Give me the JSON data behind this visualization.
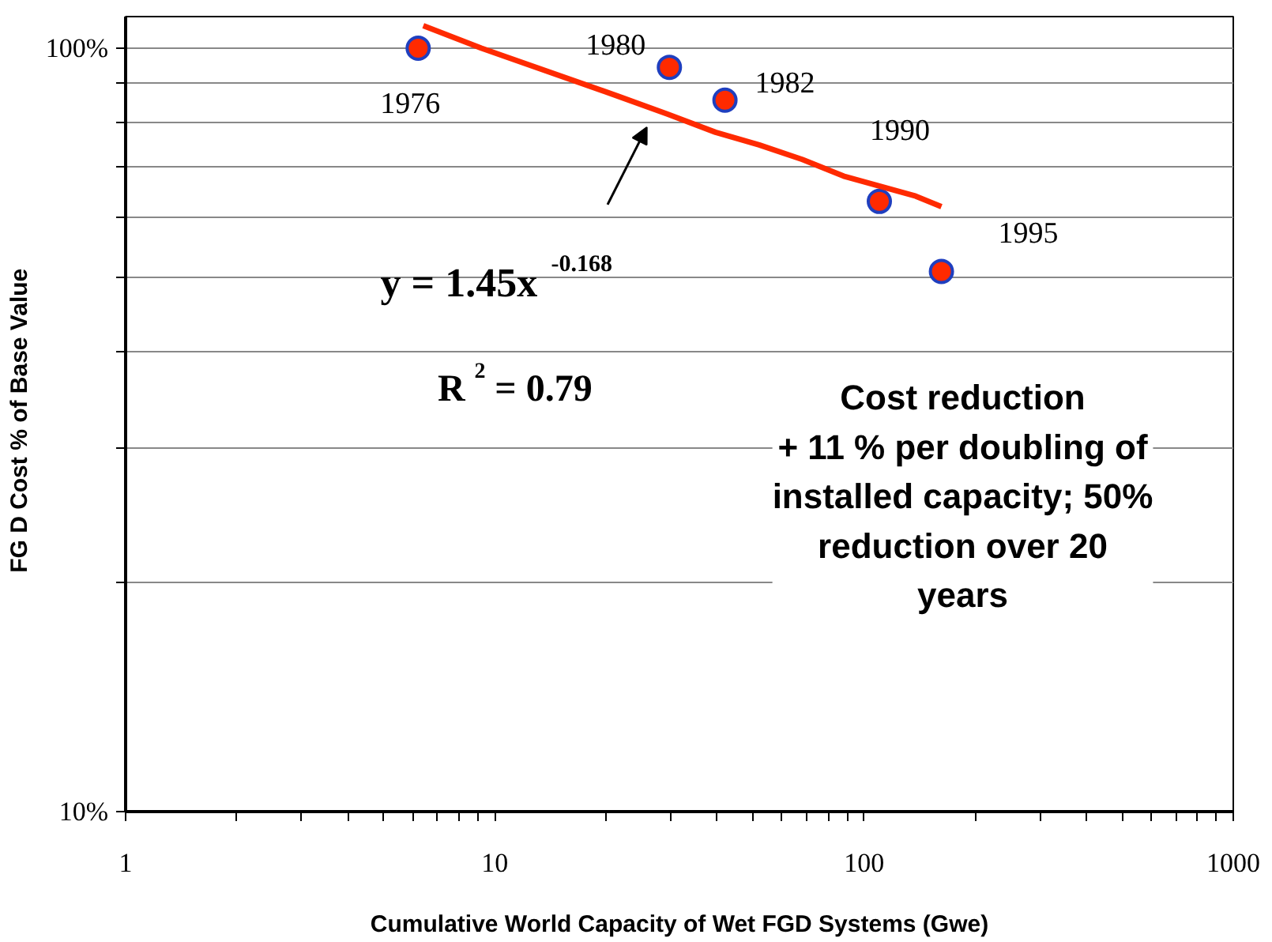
{
  "chart_data": {
    "type": "scatter",
    "xlabel": "Cumulative World Capacity of Wet FGD Systems (Gwe)",
    "ylabel": "FG D Cost   % of Base Value",
    "log": "xy",
    "grid": "y",
    "marker": "circle",
    "xlim": [
      1,
      1000
    ],
    "ylim": [
      10,
      110
    ],
    "xticks": [
      1,
      {
        "value": 2,
        "label": null
      },
      {
        "value": 3,
        "label": null
      },
      {
        "value": 4,
        "label": null
      },
      {
        "value": 5,
        "label": null
      },
      {
        "value": 6,
        "label": null
      },
      {
        "value": 7,
        "label": null
      },
      {
        "value": 8,
        "label": null
      },
      {
        "value": 9,
        "label": null
      },
      10,
      {
        "value": 20,
        "label": null
      },
      {
        "value": 30,
        "label": null
      },
      {
        "value": 40,
        "label": null
      },
      {
        "value": 50,
        "label": null
      },
      {
        "value": 60,
        "label": null
      },
      {
        "value": 70,
        "label": null
      },
      {
        "value": 80,
        "label": null
      },
      {
        "value": 90,
        "label": null
      },
      100,
      {
        "value": 200,
        "label": null
      },
      {
        "value": 300,
        "label": null
      },
      {
        "value": 400,
        "label": null
      },
      {
        "value": 500,
        "label": null
      },
      {
        "value": 600,
        "label": null
      },
      {
        "value": 700,
        "label": null
      },
      {
        "value": 800,
        "label": null
      },
      {
        "value": 900,
        "label": null
      },
      1000
    ],
    "yticks": [
      {
        "value": 10,
        "label": "10%"
      },
      {
        "value": 20,
        "label": null
      },
      {
        "value": 30,
        "label": null
      },
      {
        "value": 40,
        "label": null
      },
      {
        "value": 50,
        "label": null
      },
      {
        "value": 60,
        "label": null
      },
      {
        "value": 70,
        "label": null
      },
      {
        "value": 80,
        "label": null
      },
      {
        "value": 90,
        "label": null
      },
      {
        "value": 100,
        "label": "100%"
      }
    ],
    "series": [
      {
        "color": "#ff2a00",
        "x": [
          6.2,
          29.7,
          42,
          110,
          162
        ],
        "values": [
          100,
          94.4,
          85.5,
          63,
          51
        ]
      },
      {
        "type": "line",
        "color": "#ff2a00",
        "marker": "none",
        "x": [
          6.4,
          9.2,
          21.6,
          29.3,
          39.6,
          52,
          68,
          88,
          138,
          162
        ],
        "values": [
          107,
          100,
          86.5,
          82,
          77.6,
          74.7,
          71.5,
          68,
          64,
          62
        ]
      }
    ],
    "annotations": [
      {
        "text": "1976",
        "x": 6.2,
        "y": 100
      },
      {
        "text": "1980",
        "x": 29.7,
        "y": 94.4
      },
      {
        "text": "1982",
        "x": 42,
        "y": 85.5
      },
      {
        "text": "1990",
        "x": 110,
        "y": 63
      },
      {
        "text": "1995",
        "x": 162,
        "y": 51
      },
      "y = 1.45x$^{-0.168}$",
      "R$^{2}$ = 0.79",
      "Cost reduction\n+ 11 % per doubling of\ninstalled capacity; 50%\nreduction over 20\nyears"
    ]
  }
}
